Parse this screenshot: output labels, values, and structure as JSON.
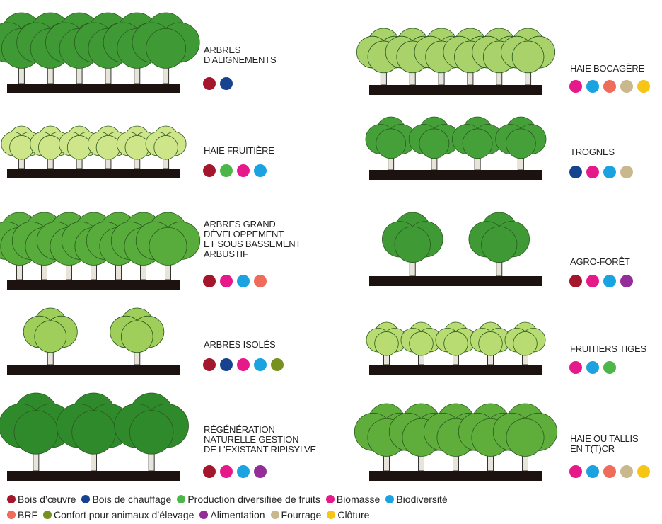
{
  "items": [
    {
      "title": [
        "ARBRES",
        "D'ALIGNEMENTS"
      ],
      "dots": [
        "#a3162b",
        "#17428f"
      ]
    },
    {
      "title": [
        "HAIE FRUITIÈRE"
      ],
      "dots": [
        "#a3162b",
        "#4cb748",
        "#e5198a",
        "#1aa3e0"
      ]
    },
    {
      "title": [
        "ARBRES GRAND",
        "DÉVELOPPEMENT",
        "ET SOUS BASSEMENT",
        "ARBUSTIF"
      ],
      "dots": [
        "#a3162b",
        "#e5198a",
        "#1aa3e0",
        "#ef6b5a"
      ]
    },
    {
      "title": [
        "ARBRES ISOLÉS"
      ],
      "dots": [
        "#a3162b",
        "#17428f",
        "#e5198a",
        "#1aa3e0",
        "#77911f"
      ]
    },
    {
      "title": [
        "RÉGÉNÉRATION",
        "NATURELLE GESTION",
        "DE L'EXISTANT RIPISYLVE"
      ],
      "dots": [
        "#a3162b",
        "#e5198a",
        "#1aa3e0",
        "#952d98"
      ]
    },
    {
      "title": [
        "HAIE BOCAGÈRE"
      ],
      "dots": [
        "#e5198a",
        "#1aa3e0",
        "#ef6b5a",
        "#c9b88d",
        "#f7c614"
      ]
    },
    {
      "title": [
        "TROGNES"
      ],
      "dots": [
        "#17428f",
        "#e5198a",
        "#1aa3e0",
        "#c9b88d"
      ]
    },
    {
      "title": [
        "AGRO-FORÊT"
      ],
      "dots": [
        "#a3162b",
        "#e5198a",
        "#1aa3e0",
        "#952d98"
      ]
    },
    {
      "title": [
        "FRUITIERS TIGES"
      ],
      "dots": [
        "#e5198a",
        "#1aa3e0",
        "#4cb748"
      ]
    },
    {
      "title": [
        "HAIE OU TALLIS",
        "EN T(T)CR"
      ],
      "dots": [
        "#e5198a",
        "#1aa3e0",
        "#ef6b5a",
        "#c9b88d",
        "#f7c614"
      ]
    }
  ],
  "legend": [
    {
      "name": "Bois d’œuvre",
      "color": "#a3162b"
    },
    {
      "name": "Bois de chauffage",
      "color": "#17428f"
    },
    {
      "name": "Production diversifiée de fruits",
      "color": "#4cb748"
    },
    {
      "name": "Biomasse",
      "color": "#e5198a"
    },
    {
      "name": "Biodiversité",
      "color": "#1aa3e0"
    },
    {
      "name": "BRF",
      "color": "#ef6b5a"
    },
    {
      "name": "Confort pour animaux d’élevage",
      "color": "#77911f"
    },
    {
      "name": "Alimentation",
      "color": "#952d98"
    },
    {
      "name": "Fourrage",
      "color": "#c9b88d"
    },
    {
      "name": "Clôture",
      "color": "#f7c614"
    }
  ]
}
